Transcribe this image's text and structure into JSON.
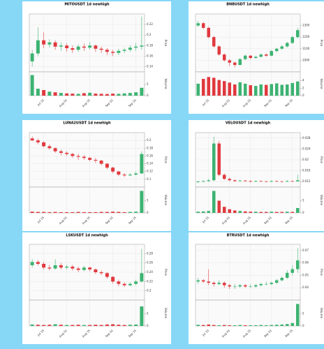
{
  "chart_data": [
    {
      "type": "candlestick",
      "title": "MITOUSDT 1d newhigh",
      "y_label": "Price",
      "v_label": "Volume",
      "grid": true,
      "up_color": "#3cb371",
      "down_color": "#e0393e",
      "xticks": [
        {
          "value": 2,
          "label": "Jul 15"
        },
        {
          "value": 6,
          "label": "Aug 01"
        },
        {
          "value": 10,
          "label": "Aug 15"
        },
        {
          "value": 14,
          "label": "Sep 01"
        },
        {
          "value": 18,
          "label": "Sep 15"
        }
      ],
      "open": [
        0.15,
        0.165,
        0.19,
        0.182,
        0.186,
        0.178,
        0.18,
        0.175,
        0.172,
        0.178,
        0.176,
        0.18,
        0.174,
        0.172,
        0.168,
        0.166,
        0.17,
        0.172,
        0.176,
        0.178
      ],
      "high": [
        0.172,
        0.215,
        0.205,
        0.192,
        0.19,
        0.186,
        0.184,
        0.18,
        0.182,
        0.184,
        0.186,
        0.182,
        0.178,
        0.175,
        0.172,
        0.174,
        0.176,
        0.18,
        0.185,
        0.235
      ],
      "low": [
        0.14,
        0.16,
        0.175,
        0.176,
        0.172,
        0.17,
        0.168,
        0.166,
        0.168,
        0.17,
        0.172,
        0.168,
        0.166,
        0.162,
        0.16,
        0.162,
        0.166,
        0.168,
        0.17,
        0.172
      ],
      "close": [
        0.165,
        0.19,
        0.182,
        0.186,
        0.178,
        0.18,
        0.175,
        0.172,
        0.178,
        0.176,
        0.18,
        0.174,
        0.172,
        0.168,
        0.166,
        0.17,
        0.172,
        0.176,
        0.178,
        0.18
      ],
      "volume": [
        9.2,
        3.1,
        2.5,
        1.8,
        1.5,
        1.2,
        1.0,
        0.9,
        0.8,
        1.1,
        1.3,
        0.9,
        0.8,
        0.7,
        0.9,
        0.8,
        1.0,
        1.2,
        1.5,
        3.5
      ],
      "ylim": [
        0.13,
        0.24
      ],
      "yticks": [
        0.14,
        0.16,
        0.18,
        0.2,
        0.22
      ],
      "vlim": [
        0,
        10
      ],
      "vticks": [
        0,
        5
      ]
    },
    {
      "type": "candlestick",
      "title": "BNBUSDT 1d newhigh",
      "y_label": "Price",
      "v_label": "Volume",
      "grid": true,
      "up_color": "#3cb371",
      "down_color": "#e0393e",
      "xticks": [
        {
          "value": 2,
          "label": "Jul 15"
        },
        {
          "value": 6,
          "label": "Aug 01"
        },
        {
          "value": 10,
          "label": "Aug 15"
        },
        {
          "value": 14,
          "label": "Sep 01"
        },
        {
          "value": 18,
          "label": "Sep 15"
        }
      ],
      "open": [
        1300,
        1320,
        1280,
        1200,
        1120,
        1050,
        1000,
        980,
        960,
        1010,
        1040,
        1020,
        1030,
        1050,
        1040,
        1080,
        1100,
        1120,
        1150,
        1200
      ],
      "high": [
        1340,
        1330,
        1290,
        1210,
        1130,
        1060,
        1010,
        990,
        1020,
        1050,
        1045,
        1040,
        1060,
        1060,
        1090,
        1110,
        1130,
        1160,
        1210,
        1280
      ],
      "low": [
        1290,
        1270,
        1190,
        1110,
        1040,
        990,
        950,
        940,
        955,
        1000,
        1010,
        1015,
        1025,
        1030,
        1035,
        1070,
        1090,
        1110,
        1140,
        1190
      ],
      "close": [
        1320,
        1280,
        1200,
        1120,
        1050,
        1000,
        980,
        960,
        1010,
        1040,
        1020,
        1030,
        1050,
        1040,
        1080,
        1100,
        1120,
        1150,
        1200,
        1260
      ],
      "volume": [
        3.2,
        4.5,
        5.0,
        4.8,
        4.2,
        3.9,
        3.5,
        3.0,
        3.6,
        3.2,
        2.8,
        2.6,
        3.0,
        2.9,
        3.1,
        3.3,
        2.9,
        3.0,
        3.4,
        3.8
      ],
      "ylim": [
        900,
        1400
      ],
      "yticks": [
        1000,
        1100,
        1200,
        1300
      ],
      "vlim": [
        0,
        6
      ],
      "vticks": [
        0,
        2,
        4
      ]
    },
    {
      "type": "candlestick",
      "title": "LUNA2USDT 1d newhigh",
      "y_label": "Price",
      "v_label": "Volume",
      "grid": true,
      "up_color": "#3cb371",
      "down_color": "#e0393e",
      "xticks": [
        {
          "value": 2,
          "label": "Jul 15"
        },
        {
          "value": 6,
          "label": "Aug 01"
        },
        {
          "value": 10,
          "label": "Aug 15"
        },
        {
          "value": 14,
          "label": "Sep 01"
        },
        {
          "value": 18,
          "label": "Sep 15"
        }
      ],
      "open": [
        0.205,
        0.2,
        0.195,
        0.185,
        0.18,
        0.172,
        0.168,
        0.165,
        0.16,
        0.158,
        0.155,
        0.15,
        0.148,
        0.14,
        0.13,
        0.12,
        0.112,
        0.11,
        0.112,
        0.115
      ],
      "high": [
        0.21,
        0.205,
        0.198,
        0.19,
        0.182,
        0.176,
        0.172,
        0.168,
        0.165,
        0.162,
        0.158,
        0.155,
        0.15,
        0.142,
        0.132,
        0.122,
        0.116,
        0.116,
        0.12,
        0.172
      ],
      "low": [
        0.198,
        0.19,
        0.182,
        0.176,
        0.168,
        0.162,
        0.16,
        0.155,
        0.15,
        0.15,
        0.146,
        0.142,
        0.136,
        0.126,
        0.116,
        0.108,
        0.106,
        0.108,
        0.11,
        0.114
      ],
      "close": [
        0.2,
        0.195,
        0.185,
        0.18,
        0.172,
        0.168,
        0.165,
        0.16,
        0.158,
        0.155,
        0.15,
        0.148,
        0.14,
        0.13,
        0.12,
        0.112,
        0.11,
        0.112,
        0.115,
        0.165
      ],
      "volume": [
        0.5,
        0.4,
        0.4,
        0.3,
        0.4,
        0.3,
        0.3,
        0.3,
        0.4,
        0.3,
        0.3,
        0.3,
        0.4,
        0.4,
        0.5,
        0.4,
        0.3,
        0.4,
        0.5,
        9.0
      ],
      "ylim": [
        0.08,
        0.22
      ],
      "yticks": [
        0.1,
        0.12,
        0.14,
        0.16,
        0.18,
        0.2
      ],
      "vlim": [
        0,
        10
      ],
      "vticks": [
        0,
        5
      ]
    },
    {
      "type": "candlestick",
      "title": "VELOUSDT 1d newhigh",
      "y_label": "Price",
      "v_label": "Volume",
      "grid": true,
      "up_color": "#3cb371",
      "down_color": "#e0393e",
      "xticks": [
        {
          "value": 2,
          "label": "Jul 15"
        },
        {
          "value": 6,
          "label": "Aug 01"
        },
        {
          "value": 10,
          "label": "Aug 15"
        },
        {
          "value": 14,
          "label": "Sep 01"
        },
        {
          "value": 18,
          "label": "Sep 15"
        }
      ],
      "open": [
        0.0118,
        0.012,
        0.0122,
        0.0125,
        0.026,
        0.0145,
        0.013,
        0.0125,
        0.0122,
        0.0124,
        0.0122,
        0.012,
        0.0122,
        0.0121,
        0.012,
        0.0122,
        0.0121,
        0.012,
        0.0122,
        0.0121
      ],
      "high": [
        0.0123,
        0.0125,
        0.013,
        0.0285,
        0.027,
        0.015,
        0.0134,
        0.0128,
        0.0127,
        0.0126,
        0.0125,
        0.0125,
        0.0124,
        0.0123,
        0.0125,
        0.0124,
        0.0123,
        0.0125,
        0.0124,
        0.0145
      ],
      "low": [
        0.0115,
        0.0117,
        0.0119,
        0.0122,
        0.014,
        0.0126,
        0.0122,
        0.0119,
        0.012,
        0.0119,
        0.0117,
        0.0118,
        0.0118,
        0.0117,
        0.0118,
        0.0118,
        0.0117,
        0.0118,
        0.0118,
        0.0119
      ],
      "close": [
        0.012,
        0.0122,
        0.0125,
        0.026,
        0.0145,
        0.013,
        0.0125,
        0.0122,
        0.0124,
        0.0122,
        0.012,
        0.0122,
        0.0121,
        0.012,
        0.0122,
        0.0121,
        0.012,
        0.0122,
        0.0121,
        0.0125
      ],
      "volume": [
        0.5,
        0.6,
        0.8,
        9.0,
        5.0,
        2.5,
        1.5,
        1.0,
        0.8,
        0.6,
        0.5,
        0.5,
        0.4,
        0.4,
        0.5,
        0.4,
        0.4,
        0.5,
        0.4,
        2.0
      ],
      "ylim": [
        0.01,
        0.03
      ],
      "yticks": [
        0.012,
        0.016,
        0.02,
        0.024,
        0.028
      ],
      "vlim": [
        0,
        10
      ],
      "vticks": [
        0,
        5
      ]
    },
    {
      "type": "candlestick",
      "title": "LSKUSDT 1d newhigh",
      "y_label": "Price",
      "v_label": "Volume",
      "grid": true,
      "up_color": "#3cb371",
      "down_color": "#e0393e",
      "xticks": [
        {
          "value": 2,
          "label": "Jul 15"
        },
        {
          "value": 6,
          "label": "Aug 01"
        },
        {
          "value": 10,
          "label": "Aug 15"
        },
        {
          "value": 14,
          "label": "Sep 01"
        },
        {
          "value": 18,
          "label": "Sep 15"
        }
      ],
      "open": [
        0.255,
        0.262,
        0.258,
        0.25,
        0.248,
        0.255,
        0.25,
        0.252,
        0.248,
        0.245,
        0.25,
        0.246,
        0.24,
        0.238,
        0.23,
        0.22,
        0.215,
        0.212,
        0.215,
        0.22
      ],
      "high": [
        0.268,
        0.266,
        0.262,
        0.256,
        0.268,
        0.26,
        0.256,
        0.256,
        0.252,
        0.254,
        0.252,
        0.248,
        0.244,
        0.24,
        0.232,
        0.224,
        0.218,
        0.218,
        0.224,
        0.29
      ],
      "low": [
        0.25,
        0.254,
        0.246,
        0.244,
        0.245,
        0.246,
        0.246,
        0.244,
        0.24,
        0.242,
        0.242,
        0.236,
        0.234,
        0.226,
        0.216,
        0.21,
        0.208,
        0.21,
        0.212,
        0.218
      ],
      "close": [
        0.262,
        0.258,
        0.25,
        0.248,
        0.255,
        0.25,
        0.252,
        0.248,
        0.245,
        0.25,
        0.246,
        0.24,
        0.238,
        0.23,
        0.22,
        0.215,
        0.212,
        0.215,
        0.22,
        0.238
      ],
      "volume": [
        0.6,
        0.5,
        0.4,
        0.5,
        0.7,
        0.5,
        0.4,
        0.4,
        0.5,
        0.4,
        0.4,
        0.5,
        0.4,
        0.6,
        0.7,
        0.5,
        0.4,
        0.5,
        0.6,
        8.0
      ],
      "ylim": [
        0.18,
        0.3
      ],
      "yticks": [
        0.2,
        0.22,
        0.24,
        0.26,
        0.28
      ],
      "vlim": [
        0,
        10
      ],
      "vticks": [
        0,
        5
      ]
    },
    {
      "type": "candlestick",
      "title": "BTRUSDT 1d newhigh",
      "y_label": "Price",
      "v_label": "Volume",
      "grid": true,
      "up_color": "#3cb371",
      "down_color": "#e0393e",
      "xticks": [
        {
          "value": 2,
          "label": "Jul 15"
        },
        {
          "value": 6,
          "label": "Aug 01"
        },
        {
          "value": 10,
          "label": "Aug 15"
        },
        {
          "value": 14,
          "label": "Sep 01"
        },
        {
          "value": 18,
          "label": "Sep 15"
        }
      ],
      "open": [
        0.045,
        0.046,
        0.045,
        0.044,
        0.043,
        0.044,
        0.042,
        0.041,
        0.041,
        0.042,
        0.041,
        0.041,
        0.042,
        0.043,
        0.043,
        0.044,
        0.046,
        0.048,
        0.052,
        0.055
      ],
      "high": [
        0.048,
        0.047,
        0.055,
        0.045,
        0.046,
        0.045,
        0.043,
        0.043,
        0.043,
        0.043,
        0.043,
        0.043,
        0.044,
        0.045,
        0.045,
        0.047,
        0.049,
        0.054,
        0.058,
        0.072
      ],
      "low": [
        0.043,
        0.044,
        0.042,
        0.041,
        0.042,
        0.04,
        0.039,
        0.039,
        0.04,
        0.04,
        0.04,
        0.04,
        0.041,
        0.042,
        0.042,
        0.043,
        0.045,
        0.047,
        0.05,
        0.052
      ],
      "close": [
        0.046,
        0.045,
        0.044,
        0.043,
        0.044,
        0.042,
        0.041,
        0.041,
        0.042,
        0.041,
        0.041,
        0.042,
        0.043,
        0.043,
        0.044,
        0.046,
        0.048,
        0.052,
        0.055,
        0.062
      ],
      "volume": [
        0.5,
        0.4,
        0.6,
        0.4,
        0.3,
        0.4,
        0.3,
        0.3,
        0.4,
        0.3,
        0.3,
        0.3,
        0.4,
        0.3,
        0.4,
        0.5,
        0.6,
        0.8,
        1.2,
        9.0
      ],
      "ylim": [
        0.03,
        0.075
      ],
      "yticks": [
        0.04,
        0.05,
        0.06,
        0.07
      ],
      "vlim": [
        0,
        10
      ],
      "vticks": [
        0,
        5
      ]
    }
  ]
}
